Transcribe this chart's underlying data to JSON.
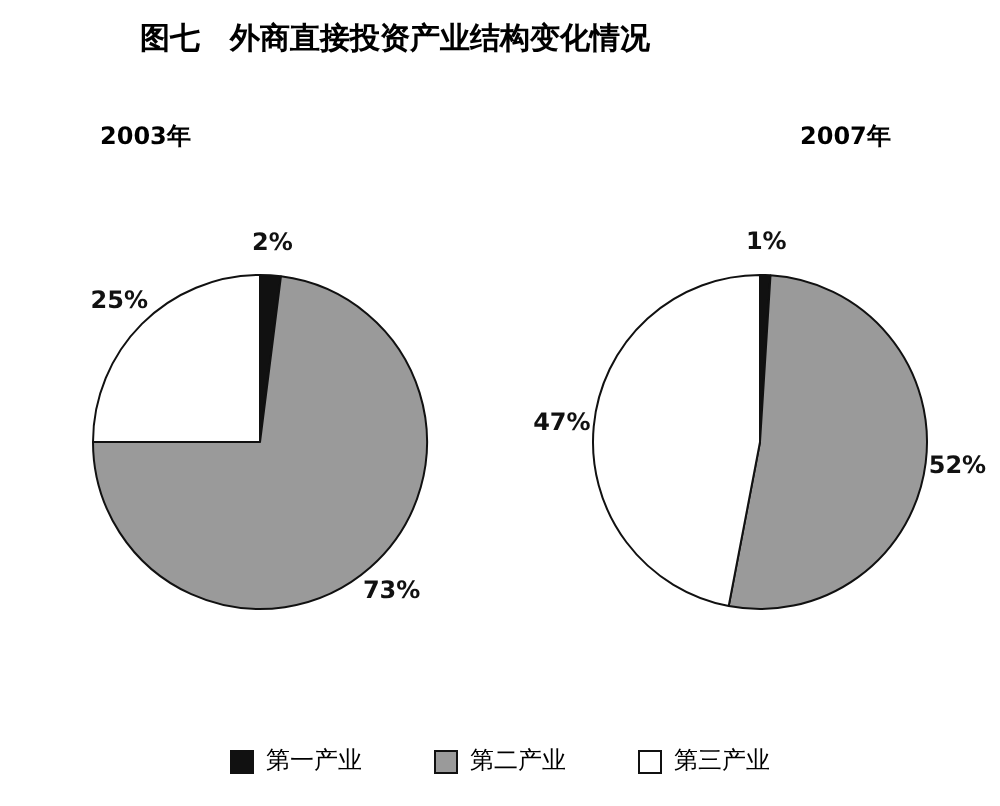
{
  "chart_data": [
    {
      "type": "pie",
      "title": "图七　外商直接投资产业结构变化情况",
      "subtitle": "2003年",
      "categories": [
        "第一产业",
        "第二产业",
        "第三产业"
      ],
      "values": [
        2,
        73,
        25
      ],
      "colors": [
        "#111111",
        "#9a9a9a",
        "#ffffff"
      ],
      "value_labels": [
        "2%",
        "73%",
        "25%"
      ],
      "legend": "bottom"
    },
    {
      "type": "pie",
      "subtitle": "2007年",
      "categories": [
        null,
        null,
        null
      ],
      "values": [
        1,
        52,
        47
      ],
      "colors": [
        "#111111",
        "#9a9a9a",
        "#ffffff"
      ],
      "value_labels": [
        "1%",
        "52%",
        "47%"
      ]
    }
  ]
}
